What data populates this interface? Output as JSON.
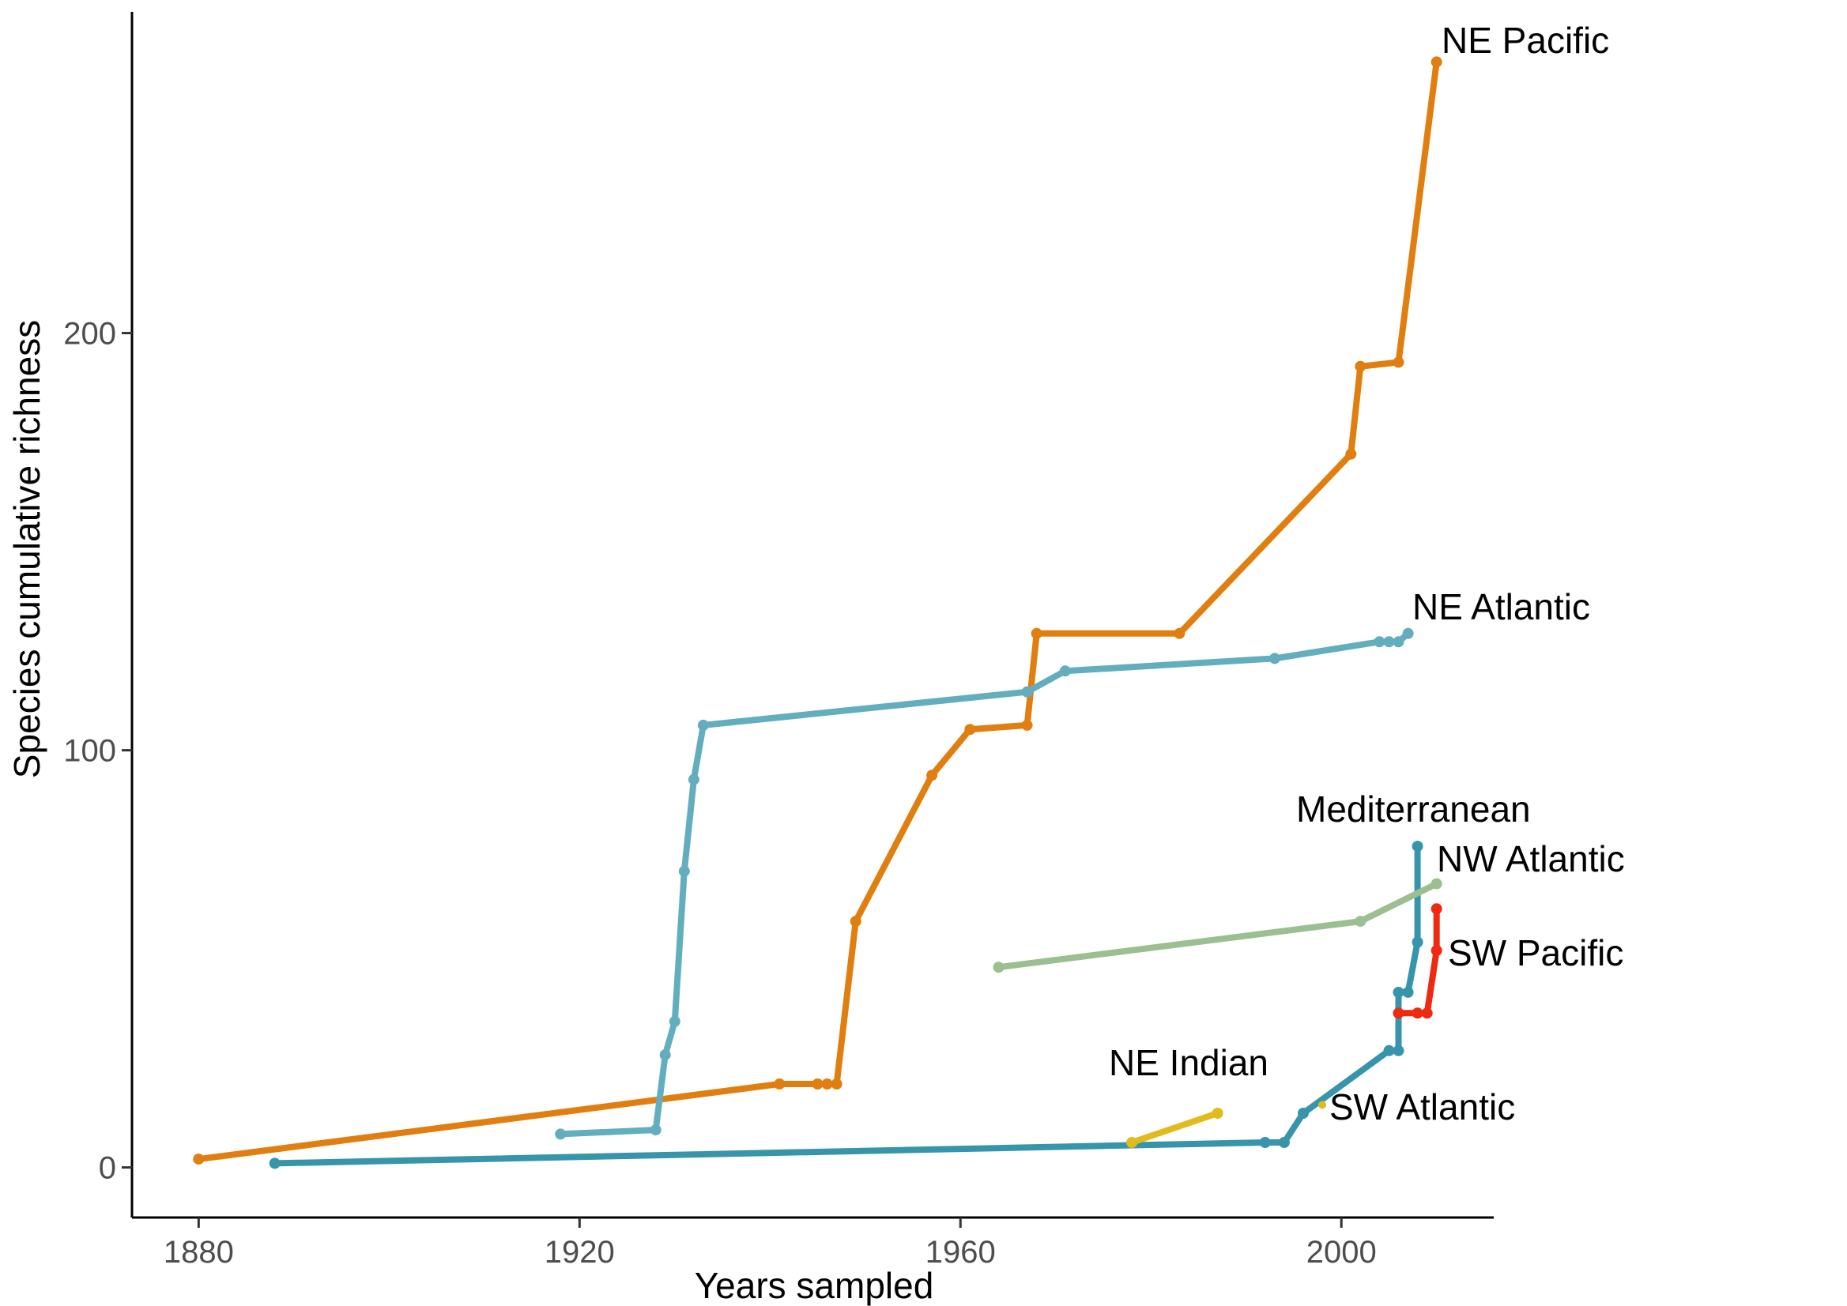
{
  "chart_data": {
    "type": "line",
    "title": "",
    "xlabel": "Years sampled",
    "ylabel": "Species cumulative richness",
    "xlim": [
      1873,
      2016
    ],
    "ylim": [
      -12,
      277
    ],
    "x_ticks": [
      1880,
      1920,
      1960,
      2000
    ],
    "y_ticks": [
      0,
      100,
      200
    ],
    "grid": false,
    "legend": "none (series labelled directly)",
    "series": [
      {
        "name": "NE Pacific",
        "color": "#E07F10",
        "points": [
          [
            1880,
            2
          ],
          [
            1941,
            20
          ],
          [
            1945,
            20
          ],
          [
            1946,
            20
          ],
          [
            1947,
            20
          ],
          [
            1949,
            59
          ],
          [
            1957,
            94
          ],
          [
            1961,
            105
          ],
          [
            1967,
            106
          ],
          [
            1968,
            128
          ],
          [
            1983,
            128
          ],
          [
            2001,
            171
          ],
          [
            2002,
            192
          ],
          [
            2006,
            193
          ],
          [
            2010,
            265
          ]
        ]
      },
      {
        "name": "NE Atlantic",
        "color": "#63AEBE",
        "points": [
          [
            1918,
            8
          ],
          [
            1928,
            9
          ],
          [
            1929,
            27
          ],
          [
            1930,
            35
          ],
          [
            1931,
            71
          ],
          [
            1932,
            93
          ],
          [
            1933,
            106
          ],
          [
            1967,
            114
          ],
          [
            1971,
            119
          ],
          [
            1993,
            122
          ],
          [
            2004,
            126
          ],
          [
            2005,
            126
          ],
          [
            2006,
            126
          ],
          [
            2007,
            128
          ]
        ]
      },
      {
        "name": "Mediterranean",
        "color": "#3795AB",
        "points": [
          [
            1888,
            1
          ],
          [
            1992,
            6
          ],
          [
            1994,
            6
          ],
          [
            1996,
            13
          ],
          [
            2005,
            28
          ],
          [
            2006,
            28
          ],
          [
            2006,
            42
          ],
          [
            2007,
            42
          ],
          [
            2008,
            54
          ],
          [
            2008,
            77
          ]
        ]
      },
      {
        "name": "NW Atlantic",
        "color": "#9CBF92",
        "points": [
          [
            1964,
            48
          ],
          [
            2002,
            59
          ],
          [
            2010,
            68
          ]
        ]
      },
      {
        "name": "SW Pacific",
        "color": "#EE2A10",
        "points": [
          [
            2006,
            37
          ],
          [
            2008,
            37
          ],
          [
            2009,
            37
          ],
          [
            2010,
            52
          ],
          [
            2010,
            62
          ]
        ]
      },
      {
        "name": "NE Indian",
        "color": "#E1BB1B",
        "points": [
          [
            1978,
            6
          ],
          [
            1987,
            13
          ]
        ]
      },
      {
        "name": "SW Atlantic",
        "color": "#E1BB1B",
        "points": [
          [
            1998,
            15
          ]
        ]
      }
    ],
    "labels": [
      {
        "text": "NE Pacific",
        "series": "NE Pacific"
      },
      {
        "text": "NE Atlantic",
        "series": "NE Atlantic"
      },
      {
        "text": "Mediterranean",
        "series": "Mediterranean"
      },
      {
        "text": "NW Atlantic",
        "series": "NW Atlantic"
      },
      {
        "text": "SW Pacific",
        "series": "SW Pacific"
      },
      {
        "text": "NE Indian",
        "series": "NE Indian"
      },
      {
        "text": "SW Atlantic",
        "series": "SW Atlantic"
      }
    ]
  }
}
